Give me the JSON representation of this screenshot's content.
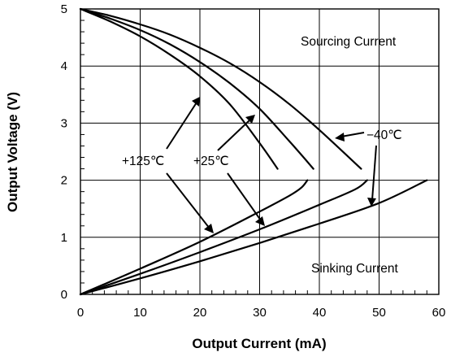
{
  "chart_data": {
    "type": "line",
    "title": "",
    "xlabel": "Output Current (mA)",
    "ylabel": "Output Voltage (V)",
    "xlim": [
      0,
      60
    ],
    "ylim": [
      0,
      5
    ],
    "xticks": [
      "0",
      "10",
      "20",
      "30",
      "40",
      "50",
      "60"
    ],
    "yticks": [
      "0",
      "1",
      "2",
      "3",
      "4",
      "5"
    ],
    "grid": true,
    "annotations": {
      "sourcing": "Sourcing Current",
      "sinking": "Sinking Current",
      "t125": "+125℃",
      "t25": "+25℃",
      "tm40": "−40℃"
    },
    "series": [
      {
        "name": "+125℃",
        "region": "sourcing",
        "x": [
          0,
          5,
          10,
          15,
          20,
          25,
          30,
          33
        ],
        "y": [
          5,
          4.78,
          4.52,
          4.2,
          3.82,
          3.33,
          2.65,
          2.2
        ]
      },
      {
        "name": "+25℃",
        "region": "sourcing",
        "x": [
          0,
          5,
          10,
          15,
          20,
          25,
          30,
          35,
          39
        ],
        "y": [
          5,
          4.83,
          4.63,
          4.38,
          4.07,
          3.7,
          3.25,
          2.68,
          2.2
        ]
      },
      {
        "name": "−40℃",
        "region": "sourcing",
        "x": [
          0,
          5,
          10,
          15,
          20,
          25,
          30,
          35,
          40,
          47
        ],
        "y": [
          5,
          4.88,
          4.73,
          4.55,
          4.32,
          4.05,
          3.72,
          3.33,
          2.88,
          2.2
        ]
      },
      {
        "name": "+125℃",
        "region": "sinking",
        "x": [
          0,
          10,
          20,
          30,
          35,
          37,
          38
        ],
        "y": [
          0,
          0.45,
          0.92,
          1.45,
          1.73,
          1.87,
          2.0
        ]
      },
      {
        "name": "+25℃",
        "region": "sinking",
        "x": [
          0,
          10,
          20,
          30,
          40,
          46,
          48
        ],
        "y": [
          0,
          0.36,
          0.74,
          1.14,
          1.57,
          1.84,
          2.0
        ]
      },
      {
        "name": "−40℃",
        "region": "sinking",
        "x": [
          0,
          10,
          20,
          30,
          40,
          50,
          58
        ],
        "y": [
          0,
          0.28,
          0.58,
          0.9,
          1.24,
          1.6,
          2.0
        ]
      }
    ]
  }
}
